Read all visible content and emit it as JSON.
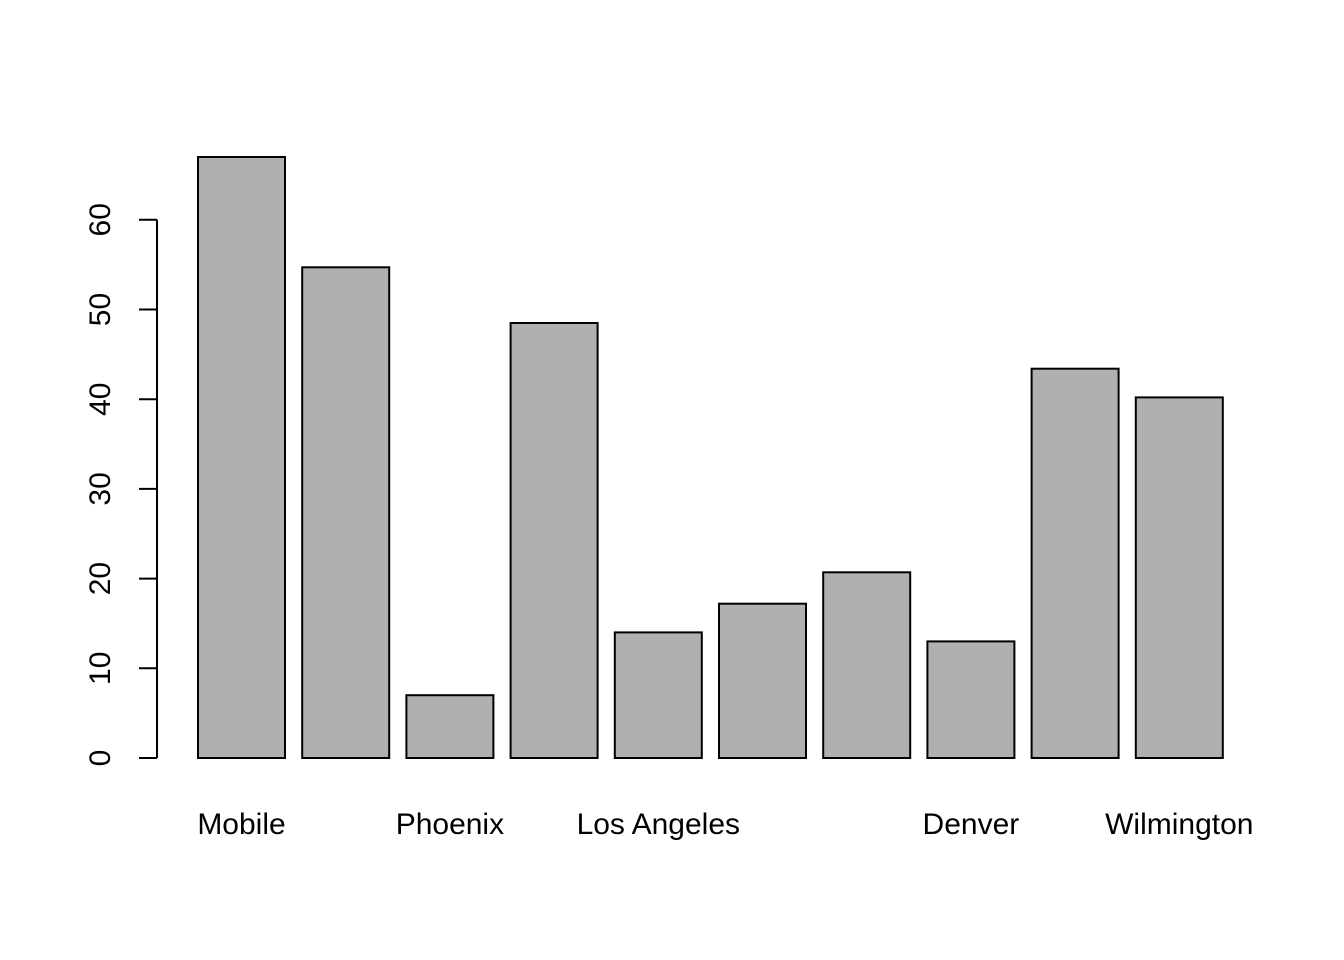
{
  "chart_data": {
    "type": "bar",
    "title": "",
    "xlabel": "",
    "ylabel": "",
    "categories": [
      "Mobile",
      "",
      "Phoenix",
      "",
      "Los Angeles",
      "",
      "",
      "Denver",
      "",
      "Wilmington"
    ],
    "values": [
      67.0,
      54.7,
      7.0,
      48.5,
      14.0,
      17.2,
      20.7,
      13.0,
      43.4,
      40.2
    ],
    "yticks": [
      0,
      10,
      20,
      30,
      40,
      50,
      60
    ],
    "ylim": [
      0,
      67
    ],
    "grid": false,
    "bar_color": "#b0b0b0",
    "edge_color": "#000000"
  }
}
